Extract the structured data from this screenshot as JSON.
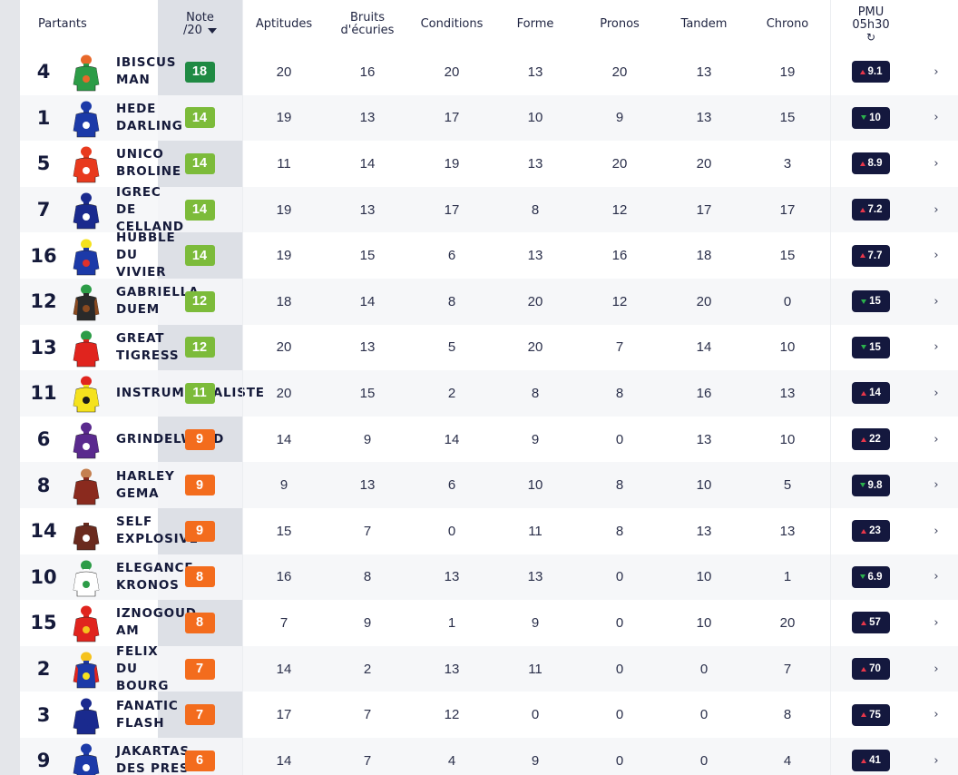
{
  "header": {
    "partants": "Partants",
    "note_line1": "Note",
    "note_line2": "/20",
    "aptitudes": "Aptitudes",
    "bruits_line1": "Bruits",
    "bruits_line2": "d'écuries",
    "conditions": "Conditions",
    "forme": "Forme",
    "pronos": "Pronos",
    "tandem": "Tandem",
    "chrono": "Chrono",
    "pmu_line1": "PMU",
    "pmu_line2": "05h30",
    "refresh_glyph": "↻"
  },
  "colors": {
    "dark_green": "#1f8a43",
    "light_green": "#7cbb3a",
    "orange": "#f36c1d",
    "odds_bg": "#14183e",
    "up": "#e8364a",
    "down": "#2bb24c"
  },
  "rows": [
    {
      "num": "4",
      "name": "IBISCUS\nMAN",
      "note": "18",
      "note_color": "#1f8a43",
      "aptitudes": "20",
      "bruits": "16",
      "conditions": "20",
      "forme": "13",
      "pronos": "20",
      "tandem": "13",
      "chrono": "19",
      "odds": "9.1",
      "trend": "up",
      "silk": {
        "body": "#2c9c47",
        "cap": "#e8682a",
        "detail": "#e8682a",
        "sleeve": "#2c9c47"
      }
    },
    {
      "num": "1",
      "name": "HEDE\nDARLING",
      "note": "14",
      "note_color": "#7cbb3a",
      "aptitudes": "19",
      "bruits": "13",
      "conditions": "17",
      "forme": "10",
      "pronos": "9",
      "tandem": "13",
      "chrono": "15",
      "odds": "10",
      "trend": "down",
      "silk": {
        "body": "#1c3aa8",
        "cap": "#1c3aa8",
        "detail": "#ffffff",
        "sleeve": "#1c3aa8"
      }
    },
    {
      "num": "5",
      "name": "UNICO\nBROLINE",
      "note": "14",
      "note_color": "#7cbb3a",
      "aptitudes": "11",
      "bruits": "14",
      "conditions": "19",
      "forme": "13",
      "pronos": "20",
      "tandem": "20",
      "chrono": "3",
      "odds": "8.9",
      "trend": "up",
      "silk": {
        "body": "#e83a1e",
        "cap": "#e83a1e",
        "detail": "#ffffff",
        "sleeve": "#e83a1e"
      }
    },
    {
      "num": "7",
      "name": "IGREC\nDE\nCELLAND",
      "note": "14",
      "note_color": "#7cbb3a",
      "aptitudes": "19",
      "bruits": "13",
      "conditions": "17",
      "forme": "8",
      "pronos": "12",
      "tandem": "17",
      "chrono": "17",
      "odds": "7.2",
      "trend": "up",
      "silk": {
        "body": "#1a2a8e",
        "cap": "#1a2a8e",
        "detail": "#ffffff",
        "sleeve": "#1a2a8e"
      }
    },
    {
      "num": "16",
      "name": "HUBBLE\nDU\nVIVIER",
      "note": "14",
      "note_color": "#7cbb3a",
      "aptitudes": "19",
      "bruits": "15",
      "conditions": "6",
      "forme": "13",
      "pronos": "16",
      "tandem": "18",
      "chrono": "15",
      "odds": "7.7",
      "trend": "up",
      "silk": {
        "body": "#1c3aa8",
        "cap": "#f5e21e",
        "detail": "#e0312b",
        "sleeve": "#1c3aa8"
      }
    },
    {
      "num": "12",
      "name": "GABRIELLA\nDUEM",
      "note": "12",
      "note_color": "#7cbb3a",
      "aptitudes": "18",
      "bruits": "14",
      "conditions": "8",
      "forme": "20",
      "pronos": "12",
      "tandem": "20",
      "chrono": "0",
      "odds": "15",
      "trend": "down",
      "silk": {
        "body": "#2a2a2a",
        "cap": "#2c9c47",
        "detail": "#8a4a20",
        "sleeve": "#8a4a20"
      }
    },
    {
      "num": "13",
      "name": "GREAT\nTIGRESS",
      "note": "12",
      "note_color": "#7cbb3a",
      "aptitudes": "20",
      "bruits": "13",
      "conditions": "5",
      "forme": "20",
      "pronos": "7",
      "tandem": "14",
      "chrono": "10",
      "odds": "15",
      "trend": "down",
      "silk": {
        "body": "#e0241e",
        "cap": "#2c9c47",
        "detail": "#e0241e",
        "sleeve": "#e0241e"
      }
    },
    {
      "num": "11",
      "name": "INSTRUMENTALISTE",
      "note": "11",
      "note_color": "#7cbb3a",
      "aptitudes": "20",
      "bruits": "15",
      "conditions": "2",
      "forme": "8",
      "pronos": "8",
      "tandem": "16",
      "chrono": "13",
      "odds": "14",
      "trend": "up",
      "silk": {
        "body": "#f5e21e",
        "cap": "#e0241e",
        "detail": "#1a1a1a",
        "sleeve": "#f5e21e"
      }
    },
    {
      "num": "6",
      "name": "GRINDELWALD",
      "note": "9",
      "note_color": "#f36c1d",
      "aptitudes": "14",
      "bruits": "9",
      "conditions": "14",
      "forme": "9",
      "pronos": "0",
      "tandem": "13",
      "chrono": "10",
      "odds": "22",
      "trend": "up",
      "silk": {
        "body": "#5a2a8e",
        "cap": "#5a2a8e",
        "detail": "#ffffff",
        "sleeve": "#5a2a8e"
      }
    },
    {
      "num": "8",
      "name": "HARLEY\nGEMA",
      "note": "9",
      "note_color": "#f36c1d",
      "aptitudes": "9",
      "bruits": "13",
      "conditions": "6",
      "forme": "10",
      "pronos": "8",
      "tandem": "10",
      "chrono": "5",
      "odds": "9.8",
      "trend": "down",
      "silk": {
        "body": "#8a2a1e",
        "cap": "#c48050",
        "detail": "#8a2a1e",
        "sleeve": "#8a2a1e"
      }
    },
    {
      "num": "14",
      "name": "SELF\nEXPLOSIVE",
      "note": "9",
      "note_color": "#f36c1d",
      "aptitudes": "15",
      "bruits": "7",
      "conditions": "0",
      "forme": "11",
      "pronos": "8",
      "tandem": "13",
      "chrono": "13",
      "odds": "23",
      "trend": "up",
      "silk": {
        "body": "#6a2a1e",
        "cap": "#ffffff",
        "detail": "#ffffff",
        "sleeve": "#6a2a1e"
      }
    },
    {
      "num": "10",
      "name": "ELEGANCE\nKRONOS",
      "note": "8",
      "note_color": "#f36c1d",
      "aptitudes": "16",
      "bruits": "8",
      "conditions": "13",
      "forme": "13",
      "pronos": "0",
      "tandem": "10",
      "chrono": "1",
      "odds": "6.9",
      "trend": "down",
      "silk": {
        "body": "#ffffff",
        "cap": "#2c9c47",
        "detail": "#2c9c47",
        "sleeve": "#ffffff"
      }
    },
    {
      "num": "15",
      "name": "IZNOGOUD\nAM",
      "note": "8",
      "note_color": "#f36c1d",
      "aptitudes": "7",
      "bruits": "9",
      "conditions": "1",
      "forme": "9",
      "pronos": "0",
      "tandem": "10",
      "chrono": "20",
      "odds": "57",
      "trend": "up",
      "silk": {
        "body": "#e0241e",
        "cap": "#e0241e",
        "detail": "#f5c21e",
        "sleeve": "#e0241e"
      }
    },
    {
      "num": "2",
      "name": "FELIX\nDU\nBOURG",
      "note": "7",
      "note_color": "#f36c1d",
      "aptitudes": "14",
      "bruits": "2",
      "conditions": "13",
      "forme": "11",
      "pronos": "0",
      "tandem": "0",
      "chrono": "7",
      "odds": "70",
      "trend": "up",
      "silk": {
        "body": "#1c3aa8",
        "cap": "#f5c21e",
        "detail": "#f5e21e",
        "sleeve": "#e0241e"
      }
    },
    {
      "num": "3",
      "name": "FANATIC\nFLASH",
      "note": "7",
      "note_color": "#f36c1d",
      "aptitudes": "17",
      "bruits": "7",
      "conditions": "12",
      "forme": "0",
      "pronos": "0",
      "tandem": "0",
      "chrono": "8",
      "odds": "75",
      "trend": "up",
      "silk": {
        "body": "#1a2a8e",
        "cap": "#1a2a8e",
        "detail": "#1a2a8e",
        "sleeve": "#1a2a8e"
      }
    },
    {
      "num": "9",
      "name": "JAKARTAS\nDES PRES",
      "note": "6",
      "note_color": "#f36c1d",
      "aptitudes": "14",
      "bruits": "7",
      "conditions": "4",
      "forme": "9",
      "pronos": "0",
      "tandem": "0",
      "chrono": "4",
      "odds": "41",
      "trend": "up",
      "silk": {
        "body": "#1c3aa8",
        "cap": "#1c3aa8",
        "detail": "#ffffff",
        "sleeve": "#1c3aa8"
      }
    }
  ]
}
